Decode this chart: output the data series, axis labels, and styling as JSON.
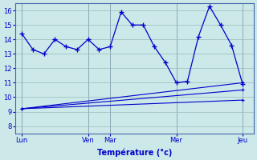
{
  "title": "",
  "xlabel": "Température (°c)",
  "ylabel": "",
  "bg_color": "#cce8e8",
  "line_color": "#0000cc",
  "grid_color": "#99bbbb",
  "ylim": [
    7.5,
    16.5
  ],
  "yticks": [
    8,
    9,
    10,
    11,
    12,
    13,
    14,
    15,
    16
  ],
  "xtick_labels": [
    "Lun",
    "",
    "Ven",
    "Mar",
    "",
    "Mer",
    "",
    "Jeu"
  ],
  "xtick_positions": [
    0,
    1.5,
    3,
    4,
    5.5,
    7,
    8.5,
    10
  ],
  "vline_positions": [
    0,
    3,
    4,
    7,
    10
  ],
  "main_line_x": [
    0,
    0.5,
    1,
    1.5,
    2,
    2.5,
    3,
    3.5,
    4,
    4.5,
    5,
    5.5,
    6,
    6.5,
    7,
    7.5,
    8,
    8.5,
    9,
    9.5,
    10
  ],
  "main_line_y": [
    14.4,
    13.3,
    13.0,
    14.0,
    13.5,
    13.3,
    14.0,
    13.3,
    13.5,
    15.9,
    15.0,
    15.0,
    13.5,
    12.4,
    11.0,
    11.1,
    14.2,
    16.3,
    15.0,
    13.6,
    10.9
  ],
  "trend_lines": [
    {
      "x0": 0,
      "y0": 9.2,
      "x1": 10,
      "y1": 11.0
    },
    {
      "x0": 0,
      "y0": 9.2,
      "x1": 10,
      "y1": 10.5
    },
    {
      "x0": 0,
      "y0": 9.2,
      "x1": 10,
      "y1": 9.8
    }
  ],
  "trend_markers_x": [
    0,
    1.5,
    3,
    4,
    5.5,
    7,
    8.5,
    10
  ],
  "n_points": 21
}
